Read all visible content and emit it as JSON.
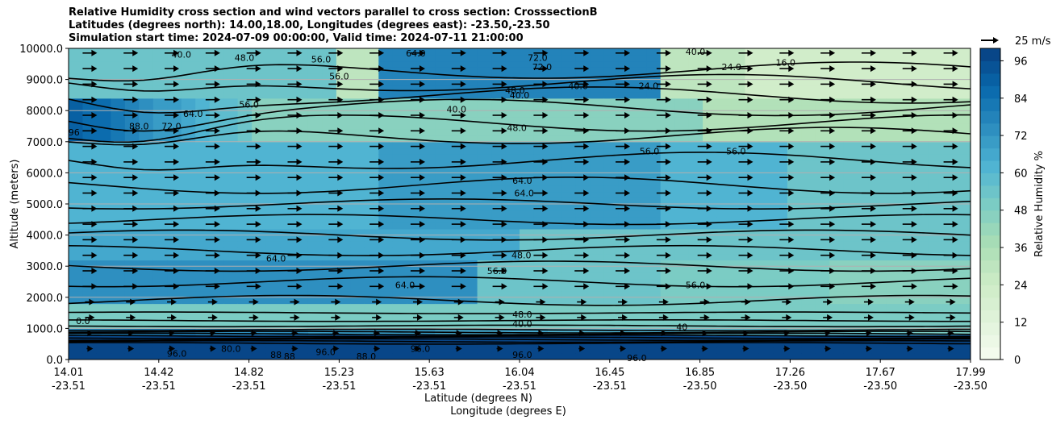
{
  "chart_data": {
    "type": "heatmap",
    "title_lines": [
      "Relative Humidity cross section and wind vectors parallel to cross section: CrosssectionB",
      "Latitudes (degrees north): 14.00,18.00, Longitudes (degrees east): -23.50,-23.50",
      "Simulation start time: 2024-07-09 00:00:00, Valid time: 2024-07-11 21:00:00"
    ],
    "xlabel": "Latitude (degrees N)",
    "xlabel2": "Longitude (degrees E)",
    "ylabel": "Altitude (meters)",
    "ylim": [
      0,
      10000
    ],
    "yticks": [
      "0.0",
      "1000.0",
      "2000.0",
      "3000.0",
      "4000.0",
      "5000.0",
      "6000.0",
      "7000.0",
      "8000.0",
      "9000.0",
      "10000.0"
    ],
    "xticks_lat": [
      "14.01",
      "14.42",
      "14.82",
      "15.23",
      "15.63",
      "16.04",
      "16.45",
      "16.85",
      "17.26",
      "17.67",
      "17.99"
    ],
    "xticks_lon": [
      "-23.51",
      "-23.51",
      "-23.51",
      "-23.51",
      "-23.51",
      "-23.51",
      "-23.51",
      "-23.50",
      "-23.50",
      "-23.50",
      "-23.50"
    ],
    "colorbar": {
      "label": "Relative Humidity %",
      "ticks": [
        "0",
        "12",
        "24",
        "36",
        "48",
        "60",
        "72",
        "84",
        "96"
      ],
      "min": 0,
      "max": 100,
      "step": 4
    },
    "quiver_key": "25 m/s",
    "contour_labels": [
      {
        "text": "40.0",
        "alt": 9800,
        "pos": 0.125
      },
      {
        "text": "48.0",
        "alt": 9700,
        "pos": 0.195
      },
      {
        "text": "56.0",
        "alt": 9650,
        "pos": 0.28
      },
      {
        "text": "64.0",
        "alt": 9850,
        "pos": 0.385
      },
      {
        "text": "72.0",
        "alt": 9700,
        "pos": 0.52
      },
      {
        "text": "72.0",
        "alt": 9400,
        "pos": 0.525
      },
      {
        "text": "40.0",
        "alt": 9900,
        "pos": 0.695
      },
      {
        "text": "24.0",
        "alt": 9400,
        "pos": 0.735
      },
      {
        "text": "16.0",
        "alt": 9550,
        "pos": 0.795
      },
      {
        "text": "56.0",
        "alt": 9100,
        "pos": 0.3
      },
      {
        "text": "48.0",
        "alt": 8650,
        "pos": 0.495
      },
      {
        "text": "40.0",
        "alt": 8500,
        "pos": 0.5
      },
      {
        "text": "40.0",
        "alt": 8800,
        "pos": 0.565
      },
      {
        "text": "24.0",
        "alt": 8800,
        "pos": 0.643
      },
      {
        "text": "56.0",
        "alt": 8200,
        "pos": 0.2
      },
      {
        "text": "64.0",
        "alt": 7900,
        "pos": 0.138
      },
      {
        "text": "40.0",
        "alt": 8050,
        "pos": 0.43
      },
      {
        "text": "72.0",
        "alt": 7500,
        "pos": 0.114
      },
      {
        "text": "88.0",
        "alt": 7500,
        "pos": 0.078
      },
      {
        "text": "96",
        "alt": 7300,
        "pos": 0.006
      },
      {
        "text": "48.0",
        "alt": 7450,
        "pos": 0.497
      },
      {
        "text": "56.0",
        "alt": 6700,
        "pos": 0.644
      },
      {
        "text": "56.0",
        "alt": 6700,
        "pos": 0.74
      },
      {
        "text": "64.0",
        "alt": 5750,
        "pos": 0.503
      },
      {
        "text": "64.0",
        "alt": 5350,
        "pos": 0.505
      },
      {
        "text": "64.0",
        "alt": 3250,
        "pos": 0.23
      },
      {
        "text": "48.0",
        "alt": 3350,
        "pos": 0.502
      },
      {
        "text": "56.0",
        "alt": 2850,
        "pos": 0.475
      },
      {
        "text": "64.0",
        "alt": 2400,
        "pos": 0.373
      },
      {
        "text": "56.0",
        "alt": 2400,
        "pos": 0.695
      },
      {
        "text": "48.0",
        "alt": 1450,
        "pos": 0.503
      },
      {
        "text": "40.0",
        "alt": 1150,
        "pos": 0.503
      },
      {
        "text": "40",
        "alt": 1050,
        "pos": 0.68
      },
      {
        "text": "0.0",
        "alt": 1250,
        "pos": 0.016
      },
      {
        "text": "80.0",
        "alt": 350,
        "pos": 0.18
      },
      {
        "text": "96.0",
        "alt": 200,
        "pos": 0.12
      },
      {
        "text": "88",
        "alt": 150,
        "pos": 0.23
      },
      {
        "text": "88",
        "alt": 100,
        "pos": 0.245
      },
      {
        "text": "96.0",
        "alt": 250,
        "pos": 0.285
      },
      {
        "text": "88.0",
        "alt": 100,
        "pos": 0.33
      },
      {
        "text": "96.0",
        "alt": 350,
        "pos": 0.39
      },
      {
        "text": "96.0",
        "alt": 150,
        "pos": 0.503
      },
      {
        "text": "96.0",
        "alt": 50,
        "pos": 0.63
      }
    ]
  }
}
